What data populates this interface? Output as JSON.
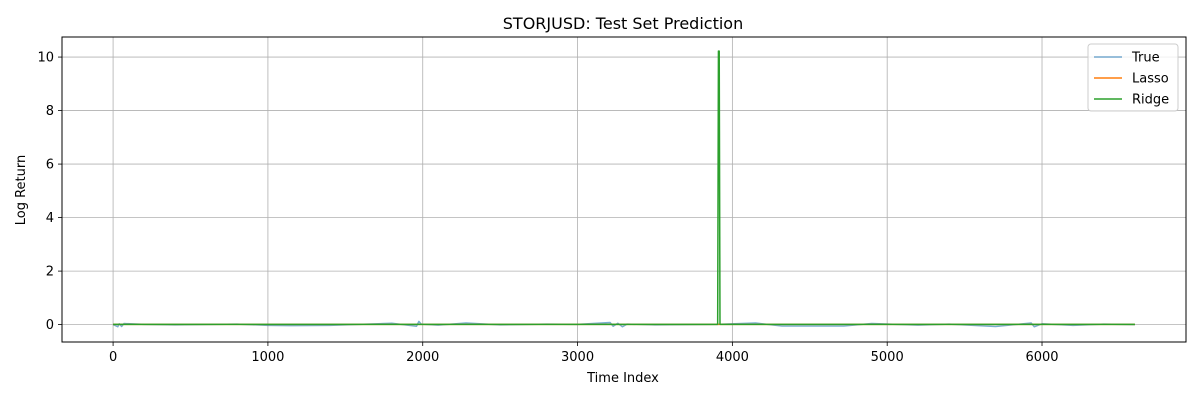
{
  "chart_data": {
    "type": "line",
    "title": "STORJUSD: Test Set Prediction",
    "xlabel": "Time Index",
    "ylabel": "Log Return",
    "xlim": [
      -330,
      6930
    ],
    "ylim": [
      -0.65,
      10.75
    ],
    "xticks": [
      0,
      1000,
      2000,
      3000,
      4000,
      5000,
      6000
    ],
    "yticks": [
      0,
      2,
      4,
      6,
      8,
      10
    ],
    "grid": true,
    "legend_position": "top-right",
    "series": [
      {
        "name": "True",
        "color": "#1f77b4",
        "opacity": 0.6,
        "x": [
          0,
          30,
          40,
          55,
          70,
          200,
          400,
          800,
          1000,
          1150,
          1400,
          1800,
          1960,
          1975,
          1990,
          2100,
          2280,
          2500,
          2800,
          3000,
          3210,
          3230,
          3260,
          3290,
          3320,
          3500,
          3900,
          4150,
          4320,
          4500,
          4720,
          4900,
          5200,
          5400,
          5700,
          5930,
          5950,
          6000,
          6200,
          6400,
          6600
        ],
        "values": [
          0,
          -0.08,
          0.03,
          -0.07,
          0.04,
          0.01,
          -0.01,
          0.02,
          -0.03,
          -0.04,
          -0.03,
          0.05,
          -0.06,
          0.12,
          0.02,
          -0.02,
          0.06,
          -0.01,
          0.02,
          0.01,
          0.08,
          -0.06,
          0.05,
          -0.08,
          0.02,
          -0.01,
          0.01,
          0.06,
          -0.05,
          -0.05,
          -0.05,
          0.04,
          -0.02,
          0.02,
          -0.07,
          0.06,
          -0.08,
          0.03,
          -0.03,
          0.02,
          0.0
        ]
      },
      {
        "name": "Lasso",
        "color": "#ff7f0e",
        "opacity": 1,
        "x": [
          0,
          6600
        ],
        "values": [
          0.01,
          0.01
        ]
      },
      {
        "name": "Ridge",
        "color": "#2ca02c",
        "opacity": 1,
        "x": [
          0,
          3905,
          3910,
          3915,
          3920,
          6600
        ],
        "values": [
          0.01,
          0.01,
          10.22,
          10.22,
          0.01,
          0.01
        ]
      }
    ]
  }
}
